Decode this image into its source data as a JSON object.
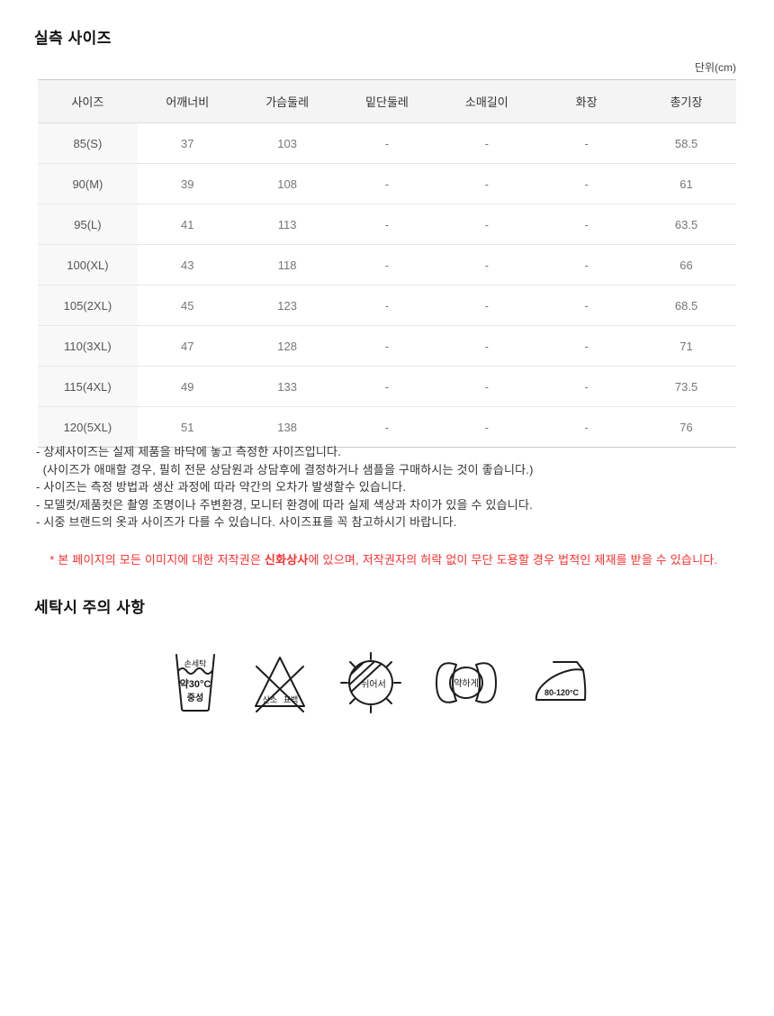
{
  "page": {
    "section1_title": "실측 사이즈",
    "unit_label": "단위(cm)",
    "section2_title": "세탁시 주의 사항"
  },
  "size_table": {
    "columns": [
      "사이즈",
      "어깨너비",
      "가슴둘레",
      "밑단둘레",
      "소매길이",
      "화장",
      "총기장"
    ],
    "rows": [
      [
        "85(S)",
        "37",
        "103",
        "-",
        "-",
        "-",
        "58.5"
      ],
      [
        "90(M)",
        "39",
        "108",
        "-",
        "-",
        "-",
        "61"
      ],
      [
        "95(L)",
        "41",
        "113",
        "-",
        "-",
        "-",
        "63.5"
      ],
      [
        "100(XL)",
        "43",
        "118",
        "-",
        "-",
        "-",
        "66"
      ],
      [
        "105(2XL)",
        "45",
        "123",
        "-",
        "-",
        "-",
        "68.5"
      ],
      [
        "110(3XL)",
        "47",
        "128",
        "-",
        "-",
        "-",
        "71"
      ],
      [
        "115(4XL)",
        "49",
        "133",
        "-",
        "-",
        "-",
        "73.5"
      ],
      [
        "120(5XL)",
        "51",
        "138",
        "-",
        "-",
        "-",
        "76"
      ]
    ]
  },
  "notes": {
    "lines": [
      "- 상세사이즈는 실제 제품을 바닥에 놓고 측정한 사이즈입니다.",
      "  (사이즈가 애매할 경우, 필히 전문 상담원과 상담후에 결정하거나 샘플을 구매하시는 것이 좋습니다.)",
      "- 사이즈는 측정 방법과 생산 과정에 따라 약간의 오차가 발생할수 있습니다.",
      "- 모델컷/제품컷은 촬영 조명이나 주변환경, 모니터 환경에 따라 실제 색상과 차이가 있을 수 있습니다.",
      "- 시중 브랜드의 옷과 사이즈가 다를 수 있습니다. 사이즈표를 꼭 참고하시기 바랍니다."
    ],
    "copyright": {
      "prefix": "* 본 페이지의 모든 이미지에 대한 저작권은 ",
      "brand": "신화상사",
      "suffix": "에 있으며, 저작권자의 허락 없이 무단 도용할 경우 법적인 제재를 받을 수 있습니다.",
      "color": "#ff2c2c"
    }
  },
  "care_icons": [
    {
      "name": "hand-wash-icon",
      "labels": [
        "손세탁",
        "약30°C",
        "중성"
      ]
    },
    {
      "name": "no-bleach-icon",
      "labels": [
        "산소",
        "표백"
      ]
    },
    {
      "name": "dry-flat-shade-icon",
      "labels": [
        "뉘어서"
      ]
    },
    {
      "name": "wring-gently-icon",
      "labels": [
        "약하게"
      ]
    },
    {
      "name": "iron-icon",
      "labels": [
        "80-120°C"
      ]
    }
  ]
}
